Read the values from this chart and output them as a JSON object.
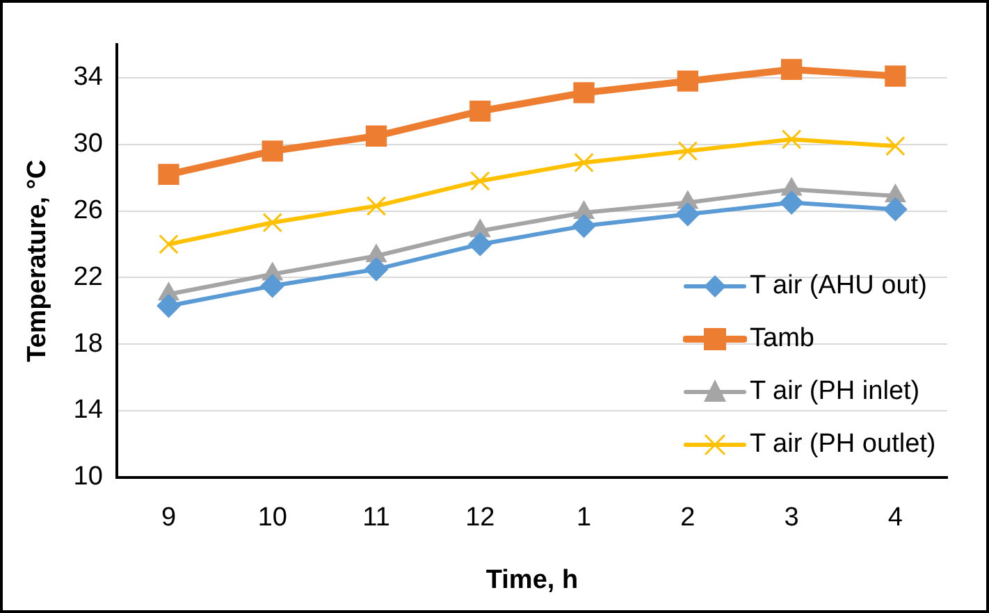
{
  "chart_data": {
    "type": "line",
    "xlabel": "Time, h",
    "ylabel": "Temperature, °C",
    "categories": [
      "9",
      "10",
      "11",
      "12",
      "1",
      "2",
      "3",
      "4"
    ],
    "ylim": [
      10,
      36
    ],
    "yticks": [
      10,
      14,
      18,
      22,
      26,
      30,
      34
    ],
    "grid": "y",
    "legend": "bottom right",
    "series": [
      {
        "name": "T air (AHU out)",
        "color": "#5b9bd5",
        "marker": "diamond",
        "values": [
          20.3,
          21.5,
          22.5,
          24.0,
          25.1,
          25.8,
          26.5,
          26.1
        ]
      },
      {
        "name": "Tamb",
        "color": "#ed7d31",
        "marker": "square",
        "values": [
          28.2,
          29.6,
          30.5,
          32.0,
          33.1,
          33.8,
          34.5,
          34.1
        ]
      },
      {
        "name": "T air (PH inlet)",
        "color": "#a5a5a5",
        "marker": "triangle",
        "values": [
          21.0,
          22.2,
          23.3,
          24.8,
          25.9,
          26.5,
          27.3,
          26.9
        ]
      },
      {
        "name": "T air (PH outlet)",
        "color": "#ffc000",
        "marker": "cross",
        "values": [
          24.0,
          25.3,
          26.3,
          27.8,
          28.9,
          29.6,
          30.3,
          29.9
        ]
      }
    ]
  }
}
